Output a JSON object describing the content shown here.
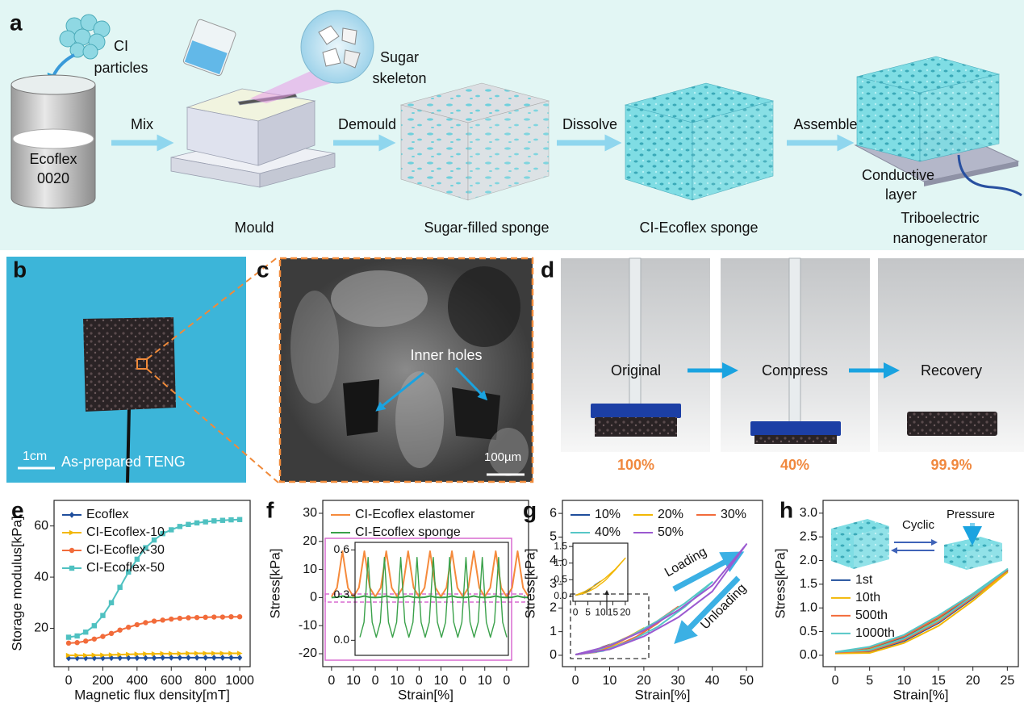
{
  "figure": {
    "a": {
      "label": "a",
      "ci_particles": [
        "CI",
        "particles"
      ],
      "ecoflex": [
        "Ecoflex",
        "0020"
      ],
      "sugar_skeleton": [
        "Sugar",
        "skeleton"
      ],
      "steps": [
        "Mix",
        "Demould",
        "Dissolve",
        "Assemble"
      ],
      "stages": [
        "Mould",
        "Sugar-filled sponge",
        "CI-Ecoflex sponge"
      ],
      "conductive_layer": [
        "Conductive",
        "layer"
      ],
      "teng": [
        "Triboelectric",
        "nanogenerator"
      ]
    },
    "b": {
      "label": "b",
      "scale": "1cm",
      "caption": "As-prepared TENG"
    },
    "c": {
      "label": "c",
      "annotation": "Inner holes",
      "scale": "100µm"
    },
    "d": {
      "label": "d",
      "states": [
        "Original",
        "Compress",
        "Recovery"
      ],
      "heights": [
        "100%",
        "40%",
        "99.9%"
      ]
    }
  },
  "chart_data": [
    {
      "type": "line",
      "label": "e",
      "xlabel": "Magnetic flux density[mT]",
      "ylabel": "Storage modulus[kPa]",
      "legend": "upper left",
      "x": [
        0,
        50,
        100,
        150,
        200,
        250,
        300,
        350,
        400,
        450,
        500,
        550,
        600,
        650,
        700,
        750,
        800,
        850,
        900,
        950,
        1000
      ],
      "xlim": [
        -85,
        1061
      ],
      "xticks": [
        0,
        200,
        400,
        600,
        800,
        1000
      ],
      "ylim": [
        5,
        70
      ],
      "yticks": [
        20,
        40,
        60
      ],
      "series": [
        {
          "name": "Ecoflex",
          "color": "#1f4e9c",
          "marker": "diamond",
          "values": [
            8.3,
            8.3,
            8.3,
            8.3,
            8.3,
            8.4,
            8.4,
            8.4,
            8.4,
            8.4,
            8.4,
            8.5,
            8.5,
            8.5,
            8.5,
            8.5,
            8.5,
            8.5,
            8.5,
            8.5,
            8.5
          ]
        },
        {
          "name": "CI-Ecoflex-10",
          "color": "#f2b705",
          "marker": "triangle",
          "values": [
            9.4,
            9.4,
            9.4,
            9.5,
            9.5,
            9.6,
            9.7,
            9.8,
            9.9,
            10,
            10,
            10.1,
            10.1,
            10.1,
            10.2,
            10.2,
            10.2,
            10.2,
            10.2,
            10.2,
            10.2
          ]
        },
        {
          "name": "CI-Ecoflex-30",
          "color": "#f26b3a",
          "marker": "circle",
          "values": [
            14.2,
            14.4,
            15,
            15.8,
            16.8,
            18,
            19.3,
            20.4,
            21.4,
            22.2,
            22.8,
            23.2,
            23.6,
            23.9,
            24.1,
            24.2,
            24.3,
            24.4,
            24.4,
            24.5,
            24.5
          ]
        },
        {
          "name": "CI-Ecoflex-50",
          "color": "#4fc1c1",
          "marker": "square",
          "values": [
            16.5,
            17,
            18.5,
            21,
            25,
            30,
            36,
            42,
            47,
            51.5,
            54.5,
            57,
            58.5,
            59.8,
            60.6,
            61.2,
            61.6,
            62,
            62.2,
            62.4,
            62.5
          ]
        }
      ]
    },
    {
      "type": "line",
      "label": "f",
      "xlabel": "Strain[%]",
      "ylabel": "Stress[kPa]",
      "legend": "upper left",
      "x": [
        0,
        0.25,
        0.5,
        0.75,
        1,
        1.25,
        1.5,
        1.75,
        2,
        2.25,
        2.5,
        2.75,
        3,
        3.25,
        3.5,
        3.75,
        4,
        4.25,
        4.5,
        4.75,
        5,
        5.25,
        5.5,
        5.75,
        6,
        6.25,
        6.5,
        6.75,
        7,
        7.25,
        7.5,
        7.75,
        8,
        8.25,
        8.5,
        8.75,
        9
      ],
      "xlim": [
        -0.4,
        9.0
      ],
      "xticks": [
        0,
        {
          "value": 1,
          "label": "10"
        },
        {
          "value": 2,
          "label": "0"
        },
        {
          "value": 3,
          "label": "10"
        },
        {
          "value": 4,
          "label": "0"
        },
        {
          "value": 5,
          "label": "10"
        },
        {
          "value": 6,
          "label": "0"
        },
        {
          "value": 7,
          "label": "10"
        },
        {
          "value": 8,
          "label": "0"
        }
      ],
      "ylim": [
        -24.6,
        34.6
      ],
      "yticks": [
        -20,
        -10,
        0,
        10,
        20,
        30
      ],
      "series": [
        {
          "name": "CI-Ecoflex elastomer",
          "color": "#f58a3c",
          "values": [
            0.3,
            3.5,
            16.5,
            3.5,
            0.3,
            3.5,
            16.5,
            3.5,
            0.3,
            3.5,
            16.5,
            3.5,
            0.3,
            3.5,
            16.5,
            3.5,
            0.3,
            3.5,
            16.5,
            3.5,
            0.3,
            3.5,
            16.5,
            3.5,
            0.3,
            3.5,
            16.5,
            3.5,
            0.3,
            3.5,
            16.5,
            3.5,
            0.3,
            3.5,
            16.5,
            3.5,
            0.3
          ]
        },
        {
          "name": "CI-Ecoflex sponge",
          "color": "#3aa14a",
          "values": [
            0.02,
            0.12,
            0.55,
            0.12,
            0.02,
            0.12,
            0.55,
            0.12,
            0.02,
            0.12,
            0.55,
            0.12,
            0.02,
            0.12,
            0.55,
            0.12,
            0.02,
            0.12,
            0.55,
            0.12,
            0.02,
            0.12,
            0.55,
            0.12,
            0.02,
            0.12,
            0.55,
            0.12,
            0.02,
            0.12,
            0.55,
            0.12,
            0.02,
            0.12,
            0.55,
            0.12,
            0.02
          ]
        }
      ],
      "inset": {
        "xlim": [
          -0.3,
          9.1
        ],
        "ylim": [
          -0.1,
          0.65
        ],
        "yticks": [
          {
            "value": 0,
            "label": "0.0"
          },
          0.3,
          0.6
        ]
      }
    },
    {
      "type": "line",
      "label": "g",
      "xlabel": "Strain[%]",
      "ylabel": "Stress[kPa]",
      "legend": "upper left",
      "legend_ncol": 3,
      "xlim": [
        -3.8,
        54.7
      ],
      "xticks": [
        0,
        10,
        20,
        30,
        40,
        50
      ],
      "ylim": [
        -0.48,
        6.55
      ],
      "yticks": [
        0,
        1,
        2,
        3,
        4,
        5,
        6
      ],
      "annotations": [
        "Loading",
        "Unloading"
      ],
      "series": [
        {
          "name": "10%",
          "color": "#1f4e9c",
          "x": [
            0,
            2,
            4,
            6,
            8,
            10,
            8,
            6,
            4,
            2,
            0
          ],
          "values": [
            0.03,
            0.08,
            0.15,
            0.24,
            0.33,
            0.45,
            0.35,
            0.22,
            0.12,
            0.06,
            0.03
          ]
        },
        {
          "name": "20%",
          "color": "#f2b705",
          "x": [
            0,
            4,
            8,
            12,
            16,
            20,
            16,
            12,
            8,
            4,
            0
          ],
          "values": [
            0.03,
            0.15,
            0.33,
            0.55,
            0.82,
            1.15,
            0.8,
            0.48,
            0.25,
            0.1,
            0.03
          ]
        },
        {
          "name": "30%",
          "color": "#f26b3a",
          "x": [
            0,
            6,
            12,
            18,
            24,
            30,
            24,
            18,
            12,
            6,
            0
          ],
          "values": [
            0.03,
            0.22,
            0.55,
            0.95,
            1.45,
            2.05,
            1.35,
            0.8,
            0.4,
            0.13,
            0.03
          ]
        },
        {
          "name": "40%",
          "color": "#56c7c7",
          "x": [
            0,
            8,
            16,
            24,
            32,
            40,
            32,
            24,
            16,
            8,
            0
          ],
          "values": [
            0.03,
            0.3,
            0.8,
            1.45,
            2.2,
            3.1,
            2.05,
            1.2,
            0.6,
            0.18,
            0.03
          ]
        },
        {
          "name": "50%",
          "color": "#9b59d0",
          "x": [
            0,
            10,
            20,
            30,
            40,
            50,
            40,
            30,
            20,
            10,
            0
          ],
          "values": [
            0.03,
            0.4,
            1.05,
            1.9,
            2.95,
            4.7,
            2.7,
            1.6,
            0.8,
            0.25,
            0.03
          ]
        }
      ],
      "inset": {
        "xlim": [
          -1,
          21
        ],
        "ylim": [
          -0.15,
          1.6
        ],
        "xticks": [
          0,
          5,
          10,
          15,
          20
        ],
        "yticks": [
          {
            "value": 0,
            "label": "0.0"
          },
          0.5,
          {
            "value": 1,
            "label": "1.0"
          },
          1.5
        ]
      }
    },
    {
      "type": "line",
      "label": "h",
      "xlabel": "Strain[%]",
      "ylabel": "Stress[kPa]",
      "legend": "center left",
      "xlim": [
        -1.76,
        26.6
      ],
      "xticks": [
        0,
        5,
        10,
        15,
        20,
        25
      ],
      "ylim": [
        -0.24,
        3.27
      ],
      "yticks": [
        {
          "value": 0,
          "label": "0.0"
        },
        0.5,
        {
          "value": 1,
          "label": "1.0"
        },
        1.5,
        {
          "value": 2,
          "label": "2.0"
        },
        2.5,
        {
          "value": 3,
          "label": "3.0"
        }
      ],
      "annotations": [
        "Cyclic",
        "Pressure"
      ],
      "series": [
        {
          "name": "1st",
          "color": "#1f4e9c",
          "x": [
            0,
            5,
            10,
            15,
            20,
            25,
            20,
            15,
            10,
            5,
            0
          ],
          "values": [
            0.05,
            0.14,
            0.38,
            0.78,
            1.25,
            1.78,
            1.2,
            0.68,
            0.3,
            0.07,
            0.05
          ]
        },
        {
          "name": "10th",
          "color": "#f2b705",
          "x": [
            0,
            5,
            10,
            15,
            20,
            25,
            20,
            15,
            10,
            5,
            0
          ],
          "values": [
            0.04,
            0.12,
            0.35,
            0.75,
            1.22,
            1.75,
            1.15,
            0.62,
            0.26,
            0.05,
            0.04
          ]
        },
        {
          "name": "500th",
          "color": "#f26b3a",
          "x": [
            0,
            5,
            10,
            15,
            20,
            25,
            20,
            15,
            10,
            5,
            0
          ],
          "values": [
            0.06,
            0.16,
            0.4,
            0.8,
            1.28,
            1.8,
            1.22,
            0.7,
            0.32,
            0.09,
            0.06
          ]
        },
        {
          "name": "1000th",
          "color": "#56c7c7",
          "x": [
            0,
            5,
            10,
            15,
            20,
            25,
            20,
            15,
            10,
            5,
            0
          ],
          "values": [
            0.07,
            0.18,
            0.43,
            0.84,
            1.3,
            1.82,
            1.25,
            0.73,
            0.35,
            0.11,
            0.07
          ]
        }
      ]
    }
  ]
}
